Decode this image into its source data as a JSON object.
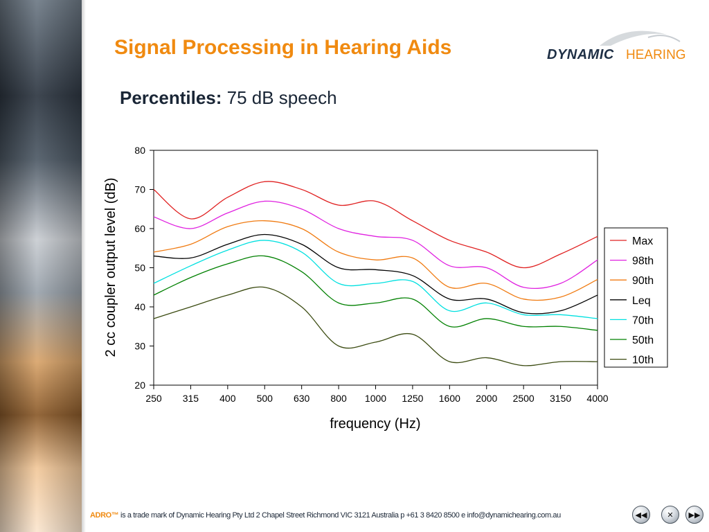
{
  "slide": {
    "title": "Signal Processing in Hearing Aids",
    "subtitle_bold": "Percentiles:",
    "subtitle_rest": " 75 dB speech"
  },
  "logo": {
    "word1": "DYNAMIC",
    "word2": "HEARING"
  },
  "footer": {
    "brand": "ADRO™",
    "text": " is a trade mark of Dynamic Hearing Pty Ltd  2 Chapel Street Richmond VIC 3121 Australia p +61 3 8420 8500  e info@dynamichearing.com.au"
  },
  "nav": {
    "prev_icon": "rewind-icon",
    "end_icon": "close-circle-icon",
    "next_icon": "fast-forward-icon"
  },
  "colors": {
    "title": "#f08a10",
    "text": "#1a2636"
  },
  "chart_data": {
    "type": "line",
    "title": "",
    "xlabel": "frequency (Hz)",
    "ylabel": "2 cc coupler output level (dB)",
    "ylim": [
      20,
      80
    ],
    "yticks": [
      20,
      30,
      40,
      50,
      60,
      70,
      80
    ],
    "x_scale": "log",
    "categories": [
      "250",
      "315",
      "400",
      "500",
      "630",
      "800",
      "1000",
      "1250",
      "1600",
      "2000",
      "2500",
      "3150",
      "4000"
    ],
    "legend_position": "right",
    "series": [
      {
        "name": "Max",
        "color": "#e02020",
        "values": [
          70,
          62.5,
          68,
          72,
          70,
          66,
          67,
          62,
          57,
          54,
          50,
          53.5,
          58
        ]
      },
      {
        "name": "98th",
        "color": "#e020e0",
        "values": [
          63,
          60,
          64,
          67,
          65,
          60,
          58,
          57,
          50.5,
          50,
          45,
          46,
          52
        ]
      },
      {
        "name": "90th",
        "color": "#f07a10",
        "values": [
          54,
          56,
          60.5,
          62,
          60,
          54,
          52,
          52.5,
          45,
          46,
          42,
          42.5,
          47
        ]
      },
      {
        "name": "Leq",
        "color": "#000000",
        "values": [
          53,
          52.5,
          56,
          58.5,
          56,
          50,
          49.5,
          48,
          42,
          42,
          38.5,
          39,
          43
        ]
      },
      {
        "name": "70th",
        "color": "#00e0e0",
        "values": [
          46,
          50.5,
          54.5,
          57,
          54,
          46,
          46,
          46.5,
          39,
          41,
          38,
          38,
          37
        ]
      },
      {
        "name": "50th",
        "color": "#008000",
        "values": [
          43,
          47.5,
          51,
          53,
          49,
          41,
          41,
          42,
          35,
          37,
          35,
          35,
          34
        ]
      },
      {
        "name": "10th",
        "color": "#3a4a10",
        "values": [
          37,
          40,
          43,
          45,
          40,
          30,
          31,
          33,
          26,
          27,
          25,
          26,
          26
        ]
      }
    ]
  }
}
